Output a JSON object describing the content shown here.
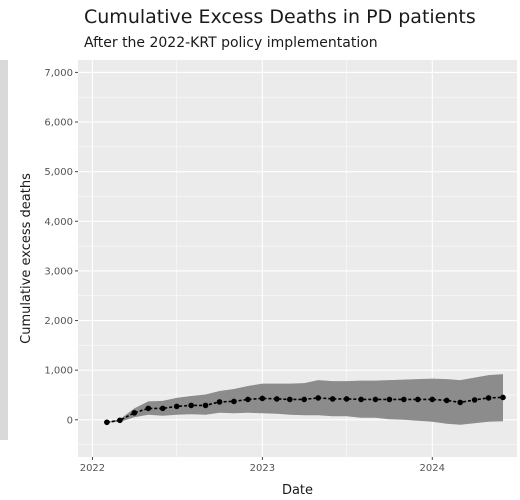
{
  "chart_data": {
    "type": "line",
    "title": "Cumulative Excess Deaths in PD patients",
    "subtitle": "After the 2022-KRT policy implementation",
    "xlabel": "Date",
    "ylabel": "Cumulative excess deaths",
    "x_ticks": [
      "2022",
      "2023",
      "2024"
    ],
    "y_ticks": [
      "0",
      "1,000",
      "2,000",
      "3,000",
      "4,000",
      "5,000",
      "6,000",
      "7,000"
    ],
    "ylim": [
      -750,
      7250
    ],
    "grid": true,
    "x": [
      "2022-02",
      "2022-03",
      "2022-04",
      "2022-05",
      "2022-06",
      "2022-07",
      "2022-08",
      "2022-09",
      "2022-10",
      "2022-11",
      "2022-12",
      "2023-01",
      "2023-02",
      "2023-03",
      "2023-04",
      "2023-05",
      "2023-06",
      "2023-07",
      "2023-08",
      "2023-09",
      "2023-10",
      "2023-11",
      "2023-12",
      "2024-01",
      "2024-02",
      "2024-03",
      "2024-04",
      "2024-05",
      "2024-06"
    ],
    "series": [
      {
        "values": [
          -50,
          -10,
          140,
          230,
          230,
          270,
          290,
          290,
          360,
          370,
          410,
          430,
          420,
          410,
          410,
          440,
          420,
          420,
          410,
          410,
          410,
          410,
          410,
          410,
          390,
          350,
          400,
          440,
          450
        ],
        "lower": [
          -60,
          -40,
          50,
          100,
          80,
          100,
          110,
          100,
          140,
          130,
          140,
          130,
          120,
          100,
          90,
          90,
          70,
          70,
          40,
          40,
          10,
          0,
          -20,
          -40,
          -80,
          -100,
          -70,
          -40,
          -30
        ],
        "upper": [
          -40,
          10,
          230,
          370,
          380,
          440,
          480,
          510,
          580,
          620,
          680,
          730,
          730,
          730,
          740,
          800,
          780,
          780,
          790,
          790,
          800,
          810,
          820,
          830,
          820,
          800,
          850,
          900,
          920
        ]
      }
    ],
    "colors": {
      "panel": "#ebebeb",
      "grid": "#ffffff",
      "ribbon": "#8c8c8c",
      "line": "#000000"
    }
  }
}
